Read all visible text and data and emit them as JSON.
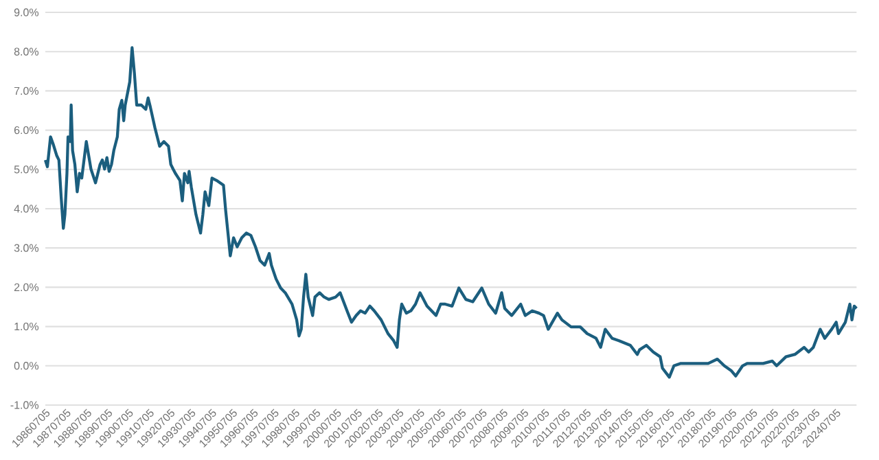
{
  "chart_data": {
    "type": "line",
    "x": [
      "1986-07-05",
      "1986-08-10",
      "1986-10-04",
      "1986-11-25",
      "1987-01-19",
      "1987-02-28",
      "1987-04-08",
      "1987-05-17",
      "1987-06-13",
      "1987-07-19",
      "1987-08-07",
      "1987-09-16",
      "1987-10-01",
      "1987-10-26",
      "1987-12-05",
      "1988-01-15",
      "1988-02-25",
      "1988-04-04",
      "1988-05-14",
      "1988-06-23",
      "1988-08-03",
      "1988-09-13",
      "1988-12-02",
      "1989-02-21",
      "1989-04-01",
      "1989-05-10",
      "1989-06-20",
      "1989-07-29",
      "1989-09-09",
      "1989-10-19",
      "1989-12-20",
      "1990-01-22",
      "1990-03-09",
      "1990-04-11",
      "1990-05-07",
      "1990-07-26",
      "1990-09-05",
      "1990-10-15",
      "1990-11-25",
      "1991-02-14",
      "1991-05-03",
      "1991-06-13",
      "1991-07-22",
      "1991-10-11",
      "1992-01-01",
      "1992-03-16",
      "1992-06-05",
      "1992-07-15",
      "1992-08-25",
      "1992-10-04",
      "1992-12-23",
      "1993-02-03",
      "1993-03-13",
      "1993-05-10",
      "1993-06-02",
      "1993-07-11",
      "1993-10-01",
      "1993-12-20",
      "1994-01-29",
      "1994-03-09",
      "1994-05-14",
      "1994-07-08",
      "1994-09-27",
      "1995-01-26",
      "1995-03-05",
      "1995-04-15",
      "1995-05-25",
      "1995-07-22",
      "1995-09-23",
      "1995-12-13",
      "1996-03-02",
      "1996-05-21",
      "1996-08-10",
      "1996-10-29",
      "1997-01-19",
      "1997-04-08",
      "1997-05-17",
      "1997-08-07",
      "1997-10-26",
      "1998-01-15",
      "1998-05-14",
      "1998-08-03",
      "1998-09-13",
      "1998-10-22",
      "1998-12-02",
      "1999-01-11",
      "1999-02-21",
      "1999-05-10",
      "1999-06-20",
      "1999-09-09",
      "1999-11-28",
      "2000-02-17",
      "2000-06-16",
      "2000-09-05",
      "2001-01-04",
      "2001-03-23",
      "2001-06-13",
      "2001-08-28",
      "2001-11-17",
      "2002-02-07",
      "2002-04-26",
      "2002-08-25",
      "2002-12-23",
      "2003-04-01",
      "2003-06-02",
      "2003-07-11",
      "2003-08-21",
      "2003-11-10",
      "2004-01-29",
      "2004-04-19",
      "2004-07-08",
      "2004-11-07",
      "2005-04-15",
      "2005-07-04",
      "2005-09-23",
      "2006-01-22",
      "2006-05-21",
      "2006-09-20",
      "2007-01-19",
      "2007-06-27",
      "2007-10-26",
      "2008-02-25",
      "2008-06-09",
      "2008-08-03",
      "2008-12-02",
      "2009-05-10",
      "2009-07-29",
      "2009-11-28",
      "2010-03-27",
      "2010-06-16",
      "2010-09-05",
      "2011-02-14",
      "2011-05-03",
      "2011-10-11",
      "2012-03-20",
      "2012-07-19",
      "2012-12-23",
      "2013-03-13",
      "2013-06-02",
      "2013-10-01",
      "2014-01-29",
      "2014-08-17",
      "2014-12-16",
      "2015-01-26",
      "2015-05-25",
      "2015-09-23",
      "2016-01-22",
      "2016-03-02",
      "2016-07-01",
      "2016-09-20",
      "2017-01-19",
      "2017-06-27",
      "2017-12-05",
      "2018-05-14",
      "2018-10-22",
      "2019-02-21",
      "2019-06-20",
      "2019-09-09",
      "2020-01-08",
      "2020-03-27",
      "2021-01-04",
      "2021-06-13",
      "2021-08-28",
      "2022-02-07",
      "2022-07-15",
      "2022-12-23",
      "2023-03-13",
      "2023-06-02",
      "2023-10-01",
      "2023-12-20",
      "2024-04-19",
      "2024-07-08",
      "2024-08-17",
      "2024-12-16",
      "2025-03-05",
      "2025-04-11",
      "2025-05-21",
      "2025-07-01"
    ],
    "series": [
      {
        "color": "#1b5e7e",
        "values": [
          5.24,
          5.07,
          5.83,
          5.62,
          5.36,
          5.24,
          4.31,
          3.5,
          3.85,
          4.9,
          5.83,
          5.71,
          6.64,
          5.48,
          5.13,
          4.43,
          4.9,
          4.78,
          5.24,
          5.71,
          5.36,
          5.01,
          4.66,
          5.13,
          5.24,
          5.01,
          5.3,
          4.95,
          5.13,
          5.48,
          5.83,
          6.53,
          6.76,
          6.24,
          6.64,
          7.23,
          8.1,
          7.46,
          6.64,
          6.64,
          6.53,
          6.82,
          6.59,
          6.06,
          5.59,
          5.71,
          5.59,
          5.13,
          5.01,
          4.9,
          4.72,
          4.2,
          4.9,
          4.66,
          4.95,
          4.55,
          3.85,
          3.38,
          3.85,
          4.43,
          4.08,
          4.78,
          4.72,
          4.6,
          3.96,
          3.38,
          2.8,
          3.26,
          3.03,
          3.26,
          3.38,
          3.32,
          3.03,
          2.68,
          2.56,
          2.86,
          2.56,
          2.21,
          1.98,
          1.86,
          1.57,
          1.17,
          0.76,
          0.93,
          1.75,
          2.33,
          1.75,
          1.28,
          1.75,
          1.86,
          1.75,
          1.69,
          1.75,
          1.86,
          1.4,
          1.11,
          1.28,
          1.4,
          1.34,
          1.52,
          1.4,
          1.17,
          0.82,
          0.64,
          0.47,
          1.17,
          1.57,
          1.34,
          1.4,
          1.57,
          1.86,
          1.52,
          1.28,
          1.57,
          1.57,
          1.52,
          1.98,
          1.69,
          1.63,
          1.98,
          1.57,
          1.34,
          1.86,
          1.46,
          1.28,
          1.57,
          1.28,
          1.4,
          1.34,
          1.28,
          0.93,
          1.34,
          1.17,
          0.99,
          0.99,
          0.82,
          0.7,
          0.47,
          0.93,
          0.7,
          0.64,
          0.52,
          0.29,
          0.41,
          0.52,
          0.35,
          0.23,
          -0.06,
          -0.29,
          0.0,
          0.06,
          0.06,
          0.06,
          0.06,
          0.17,
          0.0,
          -0.12,
          -0.26,
          0.0,
          0.06,
          0.06,
          0.12,
          0.0,
          0.23,
          0.29,
          0.47,
          0.35,
          0.47,
          0.93,
          0.7,
          0.93,
          1.11,
          0.82,
          1.11,
          1.57,
          1.17,
          1.52,
          1.46
        ]
      }
    ],
    "xlim": [
      "1986-07-05",
      "2025-07-01"
    ],
    "xticks": [
      {
        "value": "1986-07-05",
        "label": "19860705"
      },
      {
        "value": "1987-07-05",
        "label": "19870705"
      },
      {
        "value": "1988-07-05",
        "label": "19880705"
      },
      {
        "value": "1989-07-05",
        "label": "19890705"
      },
      {
        "value": "1990-07-05",
        "label": "19900705"
      },
      {
        "value": "1991-07-05",
        "label": "19910705"
      },
      {
        "value": "1992-07-05",
        "label": "19920705"
      },
      {
        "value": "1993-07-05",
        "label": "19930705"
      },
      {
        "value": "1994-07-05",
        "label": "19940705"
      },
      {
        "value": "1995-07-05",
        "label": "19950705"
      },
      {
        "value": "1996-07-05",
        "label": "19960705"
      },
      {
        "value": "1997-07-05",
        "label": "19970705"
      },
      {
        "value": "1998-07-05",
        "label": "19980705"
      },
      {
        "value": "1999-07-05",
        "label": "19990705"
      },
      {
        "value": "2000-07-05",
        "label": "20000705"
      },
      {
        "value": "2001-07-05",
        "label": "20010705"
      },
      {
        "value": "2002-07-05",
        "label": "20020705"
      },
      {
        "value": "2003-07-05",
        "label": "20030705"
      },
      {
        "value": "2004-07-05",
        "label": "20040705"
      },
      {
        "value": "2005-07-05",
        "label": "20050705"
      },
      {
        "value": "2006-07-05",
        "label": "20060705"
      },
      {
        "value": "2007-07-05",
        "label": "20070705"
      },
      {
        "value": "2008-07-05",
        "label": "20080705"
      },
      {
        "value": "2009-07-05",
        "label": "20090705"
      },
      {
        "value": "2010-07-05",
        "label": "20100705"
      },
      {
        "value": "2011-07-05",
        "label": "20110705"
      },
      {
        "value": "2012-07-05",
        "label": "20120705"
      },
      {
        "value": "2013-07-05",
        "label": "20130705"
      },
      {
        "value": "2014-07-05",
        "label": "20140705"
      },
      {
        "value": "2015-07-05",
        "label": "20150705"
      },
      {
        "value": "2016-07-05",
        "label": "20160705"
      },
      {
        "value": "2017-07-05",
        "label": "20170705"
      },
      {
        "value": "2018-07-05",
        "label": "20180705"
      },
      {
        "value": "2019-07-05",
        "label": "20190705"
      },
      {
        "value": "2020-07-05",
        "label": "20200705"
      },
      {
        "value": "2021-07-05",
        "label": "20210705"
      },
      {
        "value": "2022-07-05",
        "label": "20220705"
      },
      {
        "value": "2023-07-05",
        "label": "20230705"
      },
      {
        "value": "2024-07-05",
        "label": "20240705"
      }
    ],
    "ylim": [
      -1,
      9
    ],
    "yticks": [
      {
        "value": -1,
        "label": "-1.0%"
      },
      {
        "value": 0,
        "label": "0.0%"
      },
      {
        "value": 1,
        "label": "1.0%"
      },
      {
        "value": 2,
        "label": "2.0%"
      },
      {
        "value": 3,
        "label": "3.0%"
      },
      {
        "value": 4,
        "label": "4.0%"
      },
      {
        "value": 5,
        "label": "5.0%"
      },
      {
        "value": 6,
        "label": "6.0%"
      },
      {
        "value": 7,
        "label": "7.0%"
      },
      {
        "value": 8,
        "label": "8.0%"
      },
      {
        "value": 9,
        "label": "9.0%"
      }
    ],
    "grid": "y",
    "marker": "none",
    "line_style": "solid"
  }
}
